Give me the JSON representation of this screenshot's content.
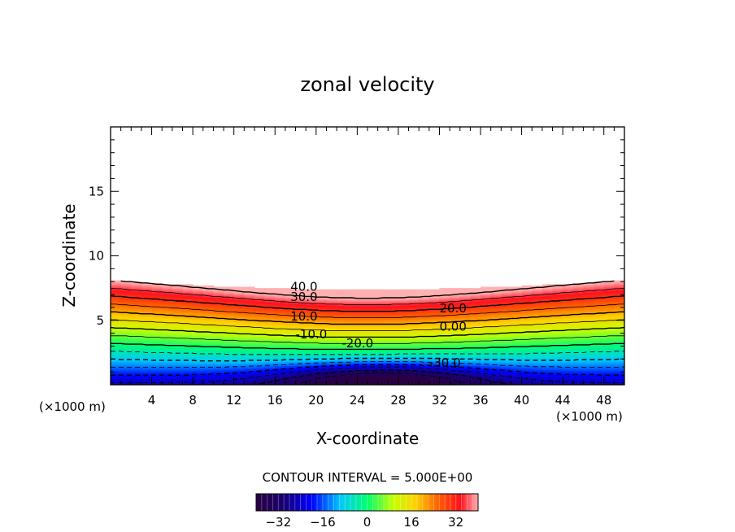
{
  "chart_data": {
    "type": "contour",
    "title": "zonal velocity",
    "xlabel": "X-coordinate",
    "ylabel": "Z-coordinate",
    "x_unit_label": "(×1000 m)",
    "xlim": [
      0,
      50
    ],
    "ylim": [
      0,
      20
    ],
    "x_ticks": [
      4,
      8,
      12,
      16,
      20,
      24,
      28,
      32,
      36,
      40,
      44,
      48
    ],
    "y_ticks": [
      5,
      10,
      15
    ],
    "contour_interval_label": "CONTOUR INTERVAL = 5.000E+00",
    "colorbar": {
      "range": [
        -40,
        40
      ],
      "ticks": [
        -32,
        -16,
        0,
        16,
        32
      ]
    },
    "contour_labels": [
      {
        "text": "40.0",
        "x": 17.5,
        "z": 7.3
      },
      {
        "text": "30.0",
        "x": 17.5,
        "z": 6.5
      },
      {
        "text": "20.0",
        "x": 32.0,
        "z": 5.6
      },
      {
        "text": "10.0",
        "x": 17.5,
        "z": 5.0
      },
      {
        "text": "0.00",
        "x": 32.0,
        "z": 4.2
      },
      {
        "text": "-10.0",
        "x": 18.0,
        "z": 3.6
      },
      {
        "text": "-20.0",
        "x": 22.5,
        "z": 2.9
      },
      {
        "text": "-30.0",
        "x": 31.0,
        "z": 1.4
      }
    ]
  }
}
